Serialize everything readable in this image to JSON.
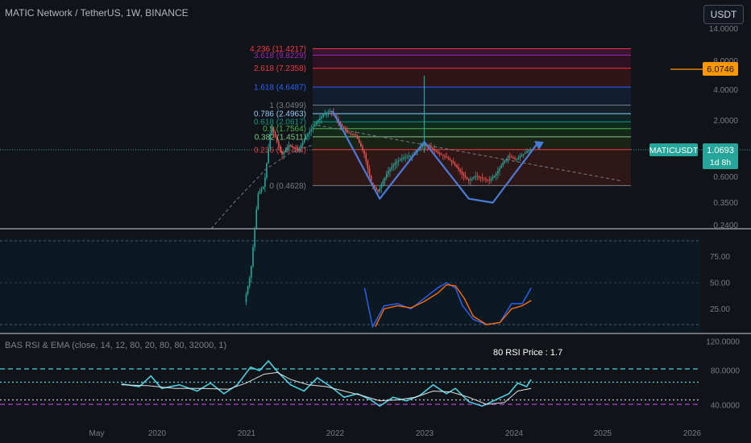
{
  "header": {
    "title": "MATIC Network / TetherUS, 1W, BINANCE",
    "currency_button": "USDT"
  },
  "price_axis": {
    "ticks": [
      "14.0000",
      "8.0000",
      "4.0000",
      "2.0000",
      "0.6000",
      "0.3500",
      "0.2400"
    ]
  },
  "badges": {
    "alert_price": "6.0746",
    "symbol": "MATICUSDT",
    "last_price": "1.0693",
    "countdown": "1d 8h"
  },
  "fib_levels": [
    {
      "ratio": "4.236",
      "price": "11.4217",
      "color": "#f23645"
    },
    {
      "ratio": "3.618",
      "price": "9.8229",
      "color": "#9c27b0"
    },
    {
      "ratio": "2.618",
      "price": "7.2358",
      "color": "#f23645"
    },
    {
      "ratio": "1.618",
      "price": "4.6487",
      "color": "#2962ff"
    },
    {
      "ratio": "1",
      "price": "3.0499",
      "color": "#787b86"
    },
    {
      "ratio": "0.786",
      "price": "2.4963",
      "color": "#90caf9"
    },
    {
      "ratio": "0.618",
      "price": "2.0617",
      "color": "#089981"
    },
    {
      "ratio": "0.5",
      "price": "1.7564",
      "color": "#4caf50"
    },
    {
      "ratio": "0.382",
      "price": "1.4511",
      "color": "#81c784"
    },
    {
      "ratio": "0.236",
      "price": "1.0734",
      "color": "#f23645"
    },
    {
      "ratio": "0",
      "price": "0.4628",
      "color": "#787b86"
    }
  ],
  "stoch_axis": {
    "ticks": [
      "75.00",
      "50.00",
      "25.00"
    ]
  },
  "rsi_panel": {
    "title": "BAS RSI & EMA (close, 14, 12, 80, 20, 80, 80, 32000, 1)",
    "note": "80 RSI Price : 1.7",
    "ticks": [
      "120.0000",
      "80.0000",
      "40.0000"
    ]
  },
  "time_axis": {
    "labels": [
      "May",
      "2020",
      "2021",
      "2022",
      "2023",
      "2024",
      "2025",
      "2026"
    ]
  },
  "chart_data": [
    {
      "type": "candlestick",
      "title": "MATIC Network / TetherUS, 1W, BINANCE",
      "y_scale": "log",
      "x_years": [
        2019.35,
        2026
      ],
      "pattern_W": {
        "x": [
          2021.97,
          2022.5,
          2023.0,
          2023.5,
          2023.77,
          2024.27
        ],
        "y": [
          2.66,
          0.34,
          1.29,
          0.34,
          0.31,
          1.24
        ],
        "color": "#4a7bd8"
      },
      "trendline": {
        "x": [
          2021.8,
          2025.2
        ],
        "y": [
          1.9,
          0.52
        ]
      },
      "last_price": 1.0693
    },
    {
      "type": "line",
      "panel": "stochastic",
      "y_ticks": [
        25,
        50,
        75
      ],
      "k": {
        "x": [
          2022.33,
          2022.42,
          2022.55,
          2022.7,
          2022.85,
          2023.0,
          2023.15,
          2023.25,
          2023.35,
          2023.43,
          2023.55,
          2023.7,
          2023.85,
          2023.98,
          2024.1,
          2024.2
        ],
        "y": [
          45,
          8,
          28,
          30,
          25,
          35,
          45,
          50,
          45,
          28,
          15,
          10,
          12,
          30,
          30,
          45
        ]
      },
      "d": {
        "x": [
          2022.45,
          2022.55,
          2022.7,
          2022.85,
          2023.0,
          2023.15,
          2023.25,
          2023.35,
          2023.45,
          2023.55,
          2023.7,
          2023.85,
          2023.98,
          2024.1,
          2024.2
        ],
        "y": [
          8,
          25,
          28,
          26,
          32,
          40,
          48,
          47,
          35,
          18,
          10,
          12,
          25,
          28,
          33
        ]
      }
    },
    {
      "type": "line",
      "panel": "rsi",
      "y_ticks": [
        40,
        80
      ],
      "levels": [
        80,
        65,
        45,
        40
      ],
      "rsi": {
        "x": [
          2019.6,
          2019.8,
          2019.93,
          2020.05,
          2020.25,
          2020.45,
          2020.6,
          2020.75,
          2020.9,
          2021.05,
          2021.15,
          2021.25,
          2021.35,
          2021.5,
          2021.65,
          2021.8,
          2021.95,
          2022.1,
          2022.25,
          2022.4,
          2022.5,
          2022.65,
          2022.8,
          2022.95,
          2023.1,
          2023.25,
          2023.35,
          2023.5,
          2023.65,
          2023.8,
          2023.95,
          2024.05,
          2024.15,
          2024.2
        ],
        "y": [
          63,
          60,
          72,
          58,
          62,
          55,
          64,
          52,
          62,
          82,
          78,
          89,
          77,
          62,
          55,
          70,
          60,
          48,
          52,
          45,
          38,
          48,
          44,
          50,
          62,
          52,
          58,
          43,
          38,
          45,
          52,
          64,
          60,
          68
        ]
      },
      "ema": {
        "x": [
          2019.6,
          2019.9,
          2020.2,
          2020.5,
          2020.8,
          2021.0,
          2021.2,
          2021.35,
          2021.5,
          2021.7,
          2021.9,
          2022.1,
          2022.3,
          2022.5,
          2022.7,
          2022.9,
          2023.1,
          2023.3,
          2023.5,
          2023.7,
          2023.9,
          2024.05,
          2024.2
        ],
        "y": [
          62,
          61,
          58,
          58,
          57,
          64,
          74,
          76,
          68,
          62,
          60,
          55,
          50,
          44,
          45,
          48,
          55,
          54,
          48,
          40,
          42,
          55,
          58
        ]
      }
    }
  ]
}
